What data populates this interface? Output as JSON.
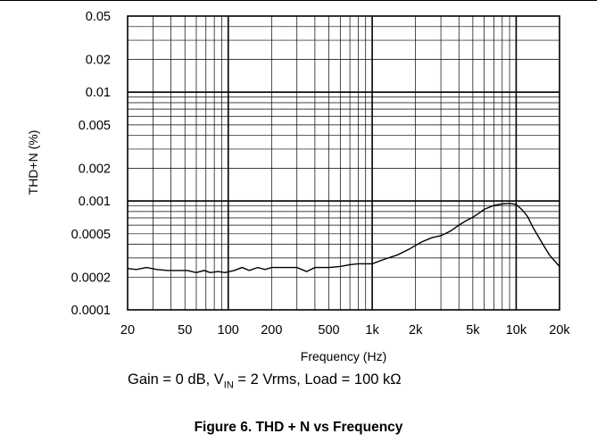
{
  "chart_data": {
    "type": "line",
    "xscale": "log",
    "yscale": "log",
    "xlabel": "Frequency (Hz)",
    "ylabel": "THD+N (%)",
    "xlim": [
      20,
      20000
    ],
    "ylim": [
      0.0001,
      0.05
    ],
    "grid": true,
    "x_ticks": [
      20,
      50,
      100,
      200,
      500,
      1000,
      2000,
      5000,
      10000,
      20000
    ],
    "x_tick_labels": [
      "20",
      "50",
      "100",
      "200",
      "500",
      "1k",
      "2k",
      "5k",
      "10k",
      "20k"
    ],
    "y_ticks": [
      0.0001,
      0.0002,
      0.0005,
      0.001,
      0.002,
      0.005,
      0.01,
      0.02,
      0.05
    ],
    "y_tick_labels": [
      "0.0001",
      "0.0002",
      "0.0005",
      "0.001",
      "0.002",
      "0.005",
      "0.01",
      "0.02",
      "0.05"
    ],
    "line_color": "#000000",
    "series": [
      {
        "x": [
          20,
          23,
          27,
          32,
          38,
          45,
          52,
          60,
          68,
          75,
          85,
          95,
          110,
          125,
          140,
          160,
          180,
          200,
          230,
          260,
          300,
          350,
          400,
          450,
          500,
          600,
          700,
          800,
          1000,
          1200,
          1500,
          1800,
          2200,
          2600,
          3000,
          3500,
          4000,
          4500,
          5000,
          5500,
          6000,
          7000,
          8000,
          9000,
          10000,
          11000,
          12000,
          13000,
          15000,
          17000,
          20000
        ],
        "y": [
          0.00024,
          0.000235,
          0.000245,
          0.000235,
          0.00023,
          0.00023,
          0.00023,
          0.00022,
          0.00023,
          0.00022,
          0.000225,
          0.00022,
          0.00023,
          0.000245,
          0.00023,
          0.000245,
          0.000235,
          0.000245,
          0.000245,
          0.000245,
          0.000245,
          0.000225,
          0.000245,
          0.000245,
          0.000245,
          0.00025,
          0.00026,
          0.000265,
          0.000265,
          0.00029,
          0.00032,
          0.00036,
          0.00042,
          0.00046,
          0.00048,
          0.00053,
          0.0006,
          0.00066,
          0.00071,
          0.00077,
          0.00084,
          0.00091,
          0.00094,
          0.00095,
          0.00093,
          0.00083,
          0.00072,
          0.00058,
          0.00042,
          0.00032,
          0.00025
        ]
      }
    ]
  },
  "conditions": {
    "prefix": "Gain = 0 dB, V",
    "subscript": "IN",
    "suffix": " = 2 Vrms, Load = 100 kΩ"
  },
  "caption": "Figure 6. THD + N vs Frequency"
}
